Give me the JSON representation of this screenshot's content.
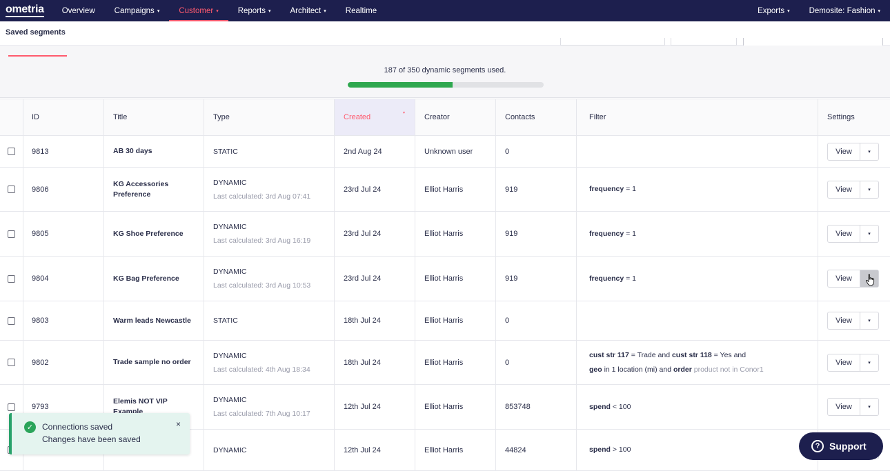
{
  "nav": {
    "logo": "ometria",
    "items": [
      {
        "label": "Overview",
        "caret": false,
        "active": false
      },
      {
        "label": "Campaigns",
        "caret": true,
        "active": false
      },
      {
        "label": "Customer",
        "caret": true,
        "active": true
      },
      {
        "label": "Reports",
        "caret": true,
        "active": false
      },
      {
        "label": "Architect",
        "caret": true,
        "active": false
      },
      {
        "label": "Realtime",
        "caret": false,
        "active": false
      }
    ],
    "right_items": [
      {
        "label": "Exports",
        "caret": true
      },
      {
        "label": "Demosite: Fashion",
        "caret": true
      }
    ],
    "caret_glyph": "▾"
  },
  "page": {
    "title": "Saved segments"
  },
  "usage": {
    "text": "187 of 350 dynamic segments used.",
    "used": 187,
    "limit": 350
  },
  "table": {
    "headers": {
      "id": "ID",
      "title": "Title",
      "type": "Type",
      "created": "Created",
      "creator": "Creator",
      "contacts": "Contacts",
      "filter": "Filter",
      "settings": "Settings"
    },
    "sort_caret": "▾",
    "view_label": "View",
    "drop_glyph": "▾",
    "rows": [
      {
        "id": "9813",
        "title": "AB 30 days",
        "type": "STATIC",
        "calc": "",
        "created": "2nd Aug 24",
        "creator": "Unknown user",
        "contacts": "0",
        "filter": []
      },
      {
        "id": "9806",
        "title": "KG Accessories Preference",
        "type": "DYNAMIC",
        "calc": "Last calculated: 3rd Aug 07:41",
        "created": "23rd Jul 24",
        "creator": "Elliot Harris",
        "contacts": "919",
        "filter": [
          [
            {
              "t": "frequency",
              "s": "b"
            },
            {
              "t": " = 1",
              "s": "n"
            }
          ]
        ]
      },
      {
        "id": "9805",
        "title": "KG Shoe Preference",
        "type": "DYNAMIC",
        "calc": "Last calculated: 3rd Aug 16:19",
        "created": "23rd Jul 24",
        "creator": "Elliot Harris",
        "contacts": "919",
        "filter": [
          [
            {
              "t": "frequency",
              "s": "b"
            },
            {
              "t": " = 1",
              "s": "n"
            }
          ]
        ]
      },
      {
        "id": "9804",
        "title": "KG Bag Preference",
        "type": "DYNAMIC",
        "calc": "Last calculated: 3rd Aug 10:53",
        "created": "23rd Jul 24",
        "creator": "Elliot Harris",
        "contacts": "919",
        "filter": [
          [
            {
              "t": "frequency",
              "s": "b"
            },
            {
              "t": " = 1",
              "s": "n"
            }
          ]
        ],
        "hover": true
      },
      {
        "id": "9803",
        "title": "Warm leads Newcastle",
        "type": "STATIC",
        "calc": "",
        "created": "18th Jul 24",
        "creator": "Elliot Harris",
        "contacts": "0",
        "filter": []
      },
      {
        "id": "9802",
        "title": "Trade sample no order",
        "type": "DYNAMIC",
        "calc": "Last calculated: 4th Aug 18:34",
        "created": "18th Jul 24",
        "creator": "Elliot Harris",
        "contacts": "0",
        "filter": [
          [
            {
              "t": "cust str 117",
              "s": "b"
            },
            {
              "t": " = Trade  and  ",
              "s": "n"
            },
            {
              "t": "cust str 118",
              "s": "b"
            },
            {
              "t": " = Yes  and",
              "s": "n"
            }
          ],
          [
            {
              "t": "geo",
              "s": "b"
            },
            {
              "t": " in 1 location (mi)  and  ",
              "s": "n"
            },
            {
              "t": "order",
              "s": "b"
            },
            {
              "t": "  product ",
              "s": "g"
            },
            {
              "t": "not in",
              "s": "g"
            },
            {
              "t": " Conor1",
              "s": "g"
            }
          ]
        ]
      },
      {
        "id": "9793",
        "title": "Elemis NOT VIP Example",
        "type": "DYNAMIC",
        "calc": "Last calculated: 7th Aug 10:17",
        "created": "12th Jul 24",
        "creator": "Elliot Harris",
        "contacts": "853748",
        "filter": [
          [
            {
              "t": "spend",
              "s": "b"
            },
            {
              "t": " < 100",
              "s": "n"
            }
          ]
        ]
      },
      {
        "id": "",
        "title": "",
        "type": "DYNAMIC",
        "calc": "",
        "created": "12th Jul 24",
        "creator": "Elliot Harris",
        "contacts": "44824",
        "filter": [
          [
            {
              "t": "spend",
              "s": "b"
            },
            {
              "t": " > 100",
              "s": "n"
            }
          ]
        ]
      }
    ]
  },
  "toast": {
    "title": "Connections saved",
    "message": "Changes have been saved",
    "check_glyph": "✓",
    "close_glyph": "×"
  },
  "support": {
    "label": "Support",
    "icon_glyph": "?"
  }
}
